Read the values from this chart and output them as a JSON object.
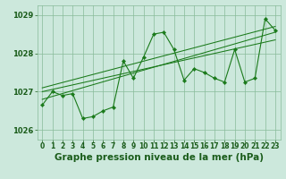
{
  "title": "Graphe pression niveau de la mer (hPa)",
  "x_values": [
    0,
    1,
    2,
    3,
    4,
    5,
    6,
    7,
    8,
    9,
    10,
    11,
    12,
    13,
    14,
    15,
    16,
    17,
    18,
    19,
    20,
    21,
    22,
    23
  ],
  "pressure_values": [
    1026.65,
    1027.0,
    1026.9,
    1026.95,
    1026.3,
    1026.35,
    1026.5,
    1026.6,
    1027.8,
    1027.35,
    1027.9,
    1028.5,
    1028.55,
    1028.1,
    1027.3,
    1027.6,
    1027.5,
    1027.35,
    1027.25,
    1028.1,
    1027.25,
    1027.35,
    1028.9,
    1028.6
  ],
  "trend_line1_x": [
    0,
    23
  ],
  "trend_line1_y": [
    1026.8,
    1028.55
  ],
  "trend_line2_x": [
    0,
    23
  ],
  "trend_line2_y": [
    1027.0,
    1028.35
  ],
  "trend_line3_x": [
    0,
    23
  ],
  "trend_line3_y": [
    1027.1,
    1028.7
  ],
  "ylim": [
    1025.75,
    1029.25
  ],
  "yticks": [
    1026,
    1027,
    1028,
    1029
  ],
  "xticks": [
    0,
    1,
    2,
    3,
    4,
    5,
    6,
    7,
    8,
    9,
    10,
    11,
    12,
    13,
    14,
    15,
    16,
    17,
    18,
    19,
    20,
    21,
    22,
    23
  ],
  "line_color": "#1a7a1a",
  "bg_color": "#cce8dc",
  "grid_color": "#88bb99",
  "text_color": "#1a5c1a",
  "title_fontsize": 7.5,
  "tick_fontsize": 5.5
}
